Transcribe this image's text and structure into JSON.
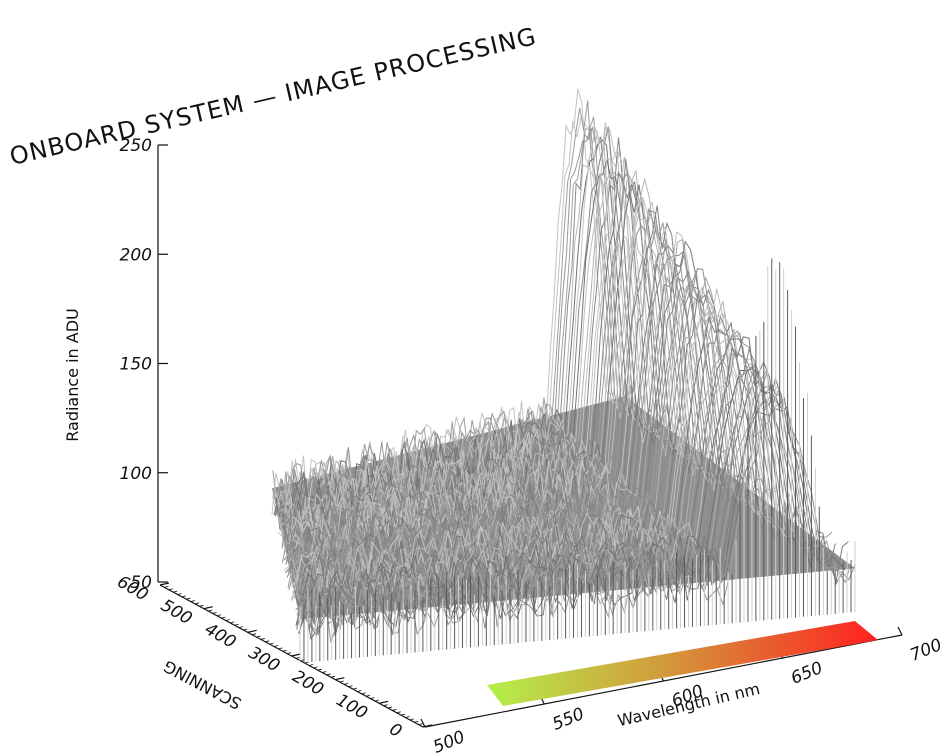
{
  "chart_data": {
    "type": "surface",
    "title": "ONBOARD SYSTEM — IMAGE PROCESSING",
    "zlabel": "Radiance in ADU",
    "xlabel": "Wavelength in nm",
    "ylabel": "SCANNING",
    "zlim": [
      50,
      250
    ],
    "xlim": [
      500,
      700
    ],
    "ylim": [
      0,
      600
    ],
    "z_ticks": [
      "50",
      "100",
      "150",
      "200",
      "250"
    ],
    "x_ticks": [
      "500",
      "550",
      "600",
      "650",
      "700"
    ],
    "y_ticks": [
      "0",
      "100",
      "200",
      "300",
      "400",
      "500",
      "600"
    ],
    "surface": {
      "baseline_radiance": 70,
      "noise_amplitude": 12,
      "peak_wavelength_start": 650,
      "peak_wavelength_end": 685,
      "peak_radiance": 225
    },
    "colorbar": {
      "range_nm": [
        510,
        690
      ],
      "colors": [
        "#b4f04a",
        "#d29a3c",
        "#ff2020"
      ]
    }
  }
}
